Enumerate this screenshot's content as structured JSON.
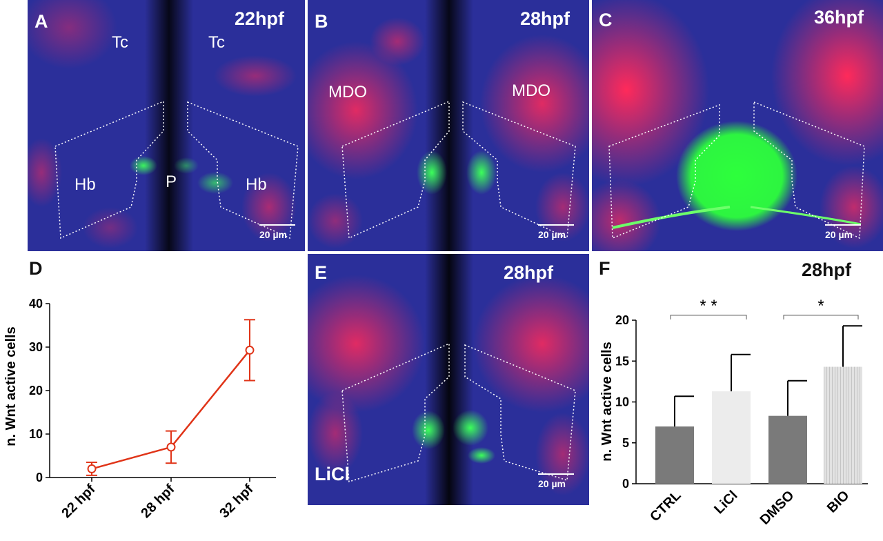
{
  "panels": {
    "A": {
      "label": "A",
      "stage": "22hpf",
      "annotations": {
        "tc_left": "Tc",
        "tc_right": "Tc",
        "hb_left": "Hb",
        "pineal": "P",
        "hb_right": "Hb"
      },
      "scale": "20 µm"
    },
    "B": {
      "label": "B",
      "stage": "28hpf",
      "annotations": {
        "mdo_left": "MDO",
        "mdo_right": "MDO"
      },
      "scale": "20 µm"
    },
    "C": {
      "label": "C",
      "stage": "36hpf",
      "scale": "20 µm"
    },
    "D": {
      "label": "D"
    },
    "E": {
      "label": "E",
      "stage": "28hpf",
      "treatment": "LiCl",
      "scale": "20 µm"
    },
    "F": {
      "label": "F",
      "stage": "28hpf"
    }
  },
  "colors": {
    "red": "#e03418",
    "bar_dark": "#7a7a7a",
    "bar_light": "#ececec",
    "bar_hatched": "#e2e2e2",
    "axis": "#000000"
  },
  "chart_data": [
    {
      "panel": "D",
      "type": "line",
      "categories": [
        "22 hpf",
        "28 hpf",
        "32 hpf"
      ],
      "values": [
        2,
        7,
        29.3
      ],
      "errors": [
        1.5,
        3.7,
        7
      ],
      "ylabel": "n. Wnt active cells",
      "ylim": [
        0,
        40
      ],
      "yticks": [
        0,
        10,
        20,
        30,
        40
      ],
      "yticklabels": [
        "0",
        "10",
        "20",
        "30",
        "40"
      ],
      "marker": "open-circle",
      "color": "#e03418",
      "grid": false
    },
    {
      "panel": "F",
      "type": "bar",
      "categories": [
        "CTRL",
        "LiCl",
        "DMSO",
        "BIO"
      ],
      "values": [
        7,
        11.3,
        8.3,
        14.3
      ],
      "errors": [
        3.7,
        4.5,
        4.3,
        5
      ],
      "bar_styles": [
        "dark",
        "light",
        "dark",
        "hatched"
      ],
      "ylabel": "n. Wnt active cells",
      "ylim": [
        0,
        20
      ],
      "yticks": [
        0,
        5,
        10,
        15,
        20
      ],
      "yticklabels": [
        "0",
        "5",
        "10",
        "15",
        "20"
      ],
      "significance": [
        {
          "pair": [
            "CTRL",
            "LiCl"
          ],
          "label": "* *"
        },
        {
          "pair": [
            "DMSO",
            "BIO"
          ],
          "label": "*"
        }
      ],
      "grid": false
    }
  ]
}
